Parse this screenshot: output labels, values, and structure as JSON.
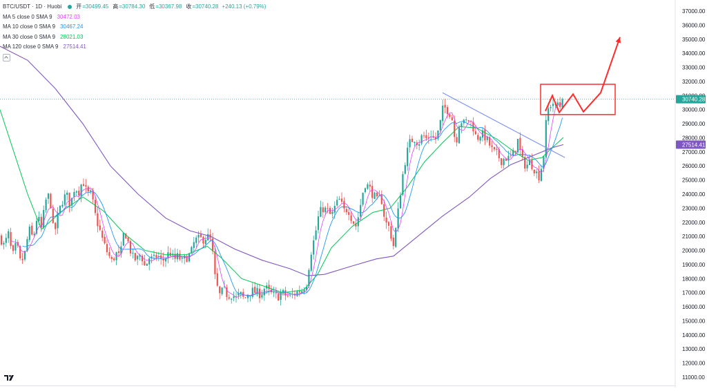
{
  "legend": {
    "symbol": "BTC/USDT · 1D · Huobi",
    "ohlc": [
      {
        "label": "开",
        "value": "=30499.45"
      },
      {
        "label": "高",
        "value": "=30784.30"
      },
      {
        "label": "低",
        "value": "=30367.98"
      },
      {
        "label": "收",
        "value": "=30740.28"
      }
    ],
    "change": "+240.13 (+0.79%)",
    "ma": [
      {
        "label": "MA 5 close 0 SMA 9",
        "value": "30472.03",
        "color": "#e040fb"
      },
      {
        "label": "MA 10 close 0 SMA 9",
        "value": "30467.24",
        "color": "#2196f3"
      },
      {
        "label": "MA 30 close 0 SMA 9",
        "value": "28021.03",
        "color": "#00c853"
      },
      {
        "label": "MA 120 close 0 SMA 9",
        "value": "27514.41",
        "color": "#7e57c2"
      }
    ]
  },
  "price_tags": [
    {
      "value": 30740.28,
      "text": "30740.28",
      "color": "#26a69a"
    },
    {
      "value": 27514.41,
      "text": "27514.41",
      "color": "#7e57c2"
    }
  ],
  "colors": {
    "up": "#26a69a",
    "down": "#ef5350",
    "annotation": "#ff2b2b",
    "trendline": "#7b8ff0"
  },
  "chart_data": {
    "type": "candlestick",
    "symbol": "BTC/USDT",
    "interval": "1D",
    "exchange": "Huobi",
    "ylim": [
      10800,
      37600
    ],
    "y_ticks": [
      11000,
      12000,
      13000,
      14000,
      15000,
      16000,
      17000,
      18000,
      19000,
      20000,
      21000,
      22000,
      23000,
      24000,
      25000,
      26000,
      27000,
      28000,
      29000,
      30000,
      31000,
      32000,
      33000,
      34000,
      35000,
      36000,
      37000
    ],
    "y_tick_labels": [
      "11000.00",
      "12000.00",
      "13000.00",
      "14000.00",
      "15000.00",
      "16000.00",
      "17000.00",
      "18000.00",
      "19000.00",
      "20000.00",
      "21000.00",
      "22000.00",
      "23000.00",
      "24000.00",
      "25000.00",
      "26000.00",
      "27000.00",
      "28000.00",
      "29000.00",
      "30000.00",
      "31000.00",
      "32000.00",
      "33000.00",
      "34000.00",
      "35000.00",
      "36000.00",
      "37000.00"
    ],
    "last_close": 30740.28,
    "close_path": [
      [
        0,
        21000
      ],
      [
        6,
        20300
      ],
      [
        12,
        21200
      ],
      [
        18,
        19500
      ],
      [
        24,
        20500
      ],
      [
        30,
        19000
      ],
      [
        36,
        19800
      ],
      [
        42,
        21500
      ],
      [
        48,
        20800
      ],
      [
        54,
        22500
      ],
      [
        60,
        21500
      ],
      [
        66,
        23500
      ],
      [
        72,
        24000
      ],
      [
        78,
        21000
      ],
      [
        84,
        22500
      ],
      [
        90,
        23500
      ],
      [
        96,
        24000
      ],
      [
        102,
        23200
      ],
      [
        108,
        24500
      ],
      [
        114,
        24200
      ],
      [
        120,
        25000
      ],
      [
        126,
        24000
      ],
      [
        132,
        24000
      ],
      [
        138,
        22500
      ],
      [
        144,
        21500
      ],
      [
        150,
        20500
      ],
      [
        156,
        19800
      ],
      [
        162,
        19200
      ],
      [
        168,
        19800
      ],
      [
        174,
        19500
      ],
      [
        180,
        21500
      ],
      [
        186,
        20500
      ],
      [
        192,
        19500
      ],
      [
        198,
        19300
      ],
      [
        204,
        19800
      ],
      [
        210,
        18800
      ],
      [
        216,
        19500
      ],
      [
        222,
        19300
      ],
      [
        228,
        19700
      ],
      [
        234,
        19200
      ],
      [
        240,
        19500
      ],
      [
        246,
        19900
      ],
      [
        252,
        19300
      ],
      [
        258,
        19600
      ],
      [
        264,
        19200
      ],
      [
        270,
        19500
      ],
      [
        276,
        19700
      ],
      [
        282,
        20700
      ],
      [
        288,
        20800
      ],
      [
        294,
        20800
      ],
      [
        300,
        21000
      ],
      [
        306,
        20700
      ],
      [
        312,
        17800
      ],
      [
        318,
        16800
      ],
      [
        324,
        17200
      ],
      [
        330,
        16800
      ],
      [
        336,
        16900
      ],
      [
        342,
        16600
      ],
      [
        348,
        16900
      ],
      [
        354,
        16500
      ],
      [
        360,
        17000
      ],
      [
        366,
        17100
      ],
      [
        372,
        17000
      ],
      [
        378,
        16900
      ],
      [
        384,
        17400
      ],
      [
        390,
        17000
      ],
      [
        396,
        16800
      ],
      [
        402,
        16700
      ],
      [
        408,
        17000
      ],
      [
        414,
        16800
      ],
      [
        420,
        16700
      ],
      [
        426,
        16900
      ],
      [
        432,
        17100
      ],
      [
        438,
        17200
      ],
      [
        444,
        17700
      ],
      [
        450,
        19800
      ],
      [
        456,
        21000
      ],
      [
        462,
        22600
      ],
      [
        468,
        23000
      ],
      [
        474,
        22800
      ],
      [
        480,
        22400
      ],
      [
        486,
        23200
      ],
      [
        492,
        23600
      ],
      [
        498,
        22800
      ],
      [
        504,
        23000
      ],
      [
        510,
        22200
      ],
      [
        516,
        21700
      ],
      [
        522,
        23200
      ],
      [
        528,
        24800
      ],
      [
        534,
        24500
      ],
      [
        540,
        24000
      ],
      [
        546,
        23500
      ],
      [
        552,
        23800
      ],
      [
        558,
        22000
      ],
      [
        564,
        21600
      ],
      [
        570,
        20300
      ],
      [
        576,
        22500
      ],
      [
        582,
        25000
      ],
      [
        588,
        26700
      ],
      [
        594,
        27700
      ],
      [
        600,
        28000
      ],
      [
        606,
        27600
      ],
      [
        612,
        28200
      ],
      [
        618,
        27900
      ],
      [
        624,
        28300
      ],
      [
        630,
        27800
      ],
      [
        636,
        28600
      ],
      [
        642,
        30200
      ],
      [
        648,
        30000
      ],
      [
        654,
        29600
      ],
      [
        660,
        27500
      ],
      [
        666,
        29300
      ],
      [
        672,
        29000
      ],
      [
        678,
        29300
      ],
      [
        684,
        29000
      ],
      [
        690,
        27900
      ],
      [
        696,
        28300
      ],
      [
        702,
        28100
      ],
      [
        708,
        27600
      ],
      [
        714,
        27000
      ],
      [
        720,
        26800
      ],
      [
        726,
        26400
      ],
      [
        732,
        26600
      ],
      [
        738,
        26500
      ],
      [
        744,
        26900
      ],
      [
        750,
        27800
      ],
      [
        756,
        26400
      ],
      [
        762,
        26000
      ],
      [
        768,
        26300
      ],
      [
        774,
        25800
      ],
      [
        780,
        25200
      ],
      [
        784,
        25900
      ],
      [
        788,
        27000
      ],
      [
        792,
        29800
      ],
      [
        796,
        30200
      ],
      [
        800,
        30600
      ],
      [
        804,
        30100
      ],
      [
        808,
        30500
      ],
      [
        812,
        30200
      ],
      [
        816,
        30740
      ]
    ],
    "moving_averages": [
      {
        "name": "MA 5 close 0 SMA 9",
        "period": 5,
        "value": 30472.03,
        "color": "#e040fb"
      },
      {
        "name": "MA 10 close 0 SMA 9",
        "period": 10,
        "value": 30467.24,
        "color": "#2196f3"
      },
      {
        "name": "MA 30 close 0 SMA 9",
        "period": 30,
        "value": 28021.03,
        "color": "#00c853"
      },
      {
        "name": "MA 120 close 0 SMA 9",
        "period": 120,
        "value": 27514.41,
        "color": "#7e57c2"
      }
    ],
    "ma120_path": [
      [
        0,
        34500
      ],
      [
        40,
        33500
      ],
      [
        80,
        31500
      ],
      [
        120,
        29000
      ],
      [
        160,
        26000
      ],
      [
        200,
        24000
      ],
      [
        240,
        22300
      ],
      [
        275,
        21400
      ],
      [
        305,
        21000
      ],
      [
        340,
        20100
      ],
      [
        380,
        19300
      ],
      [
        420,
        18700
      ],
      [
        445,
        18200
      ],
      [
        470,
        18300
      ],
      [
        510,
        18900
      ],
      [
        545,
        19400
      ],
      [
        570,
        19600
      ],
      [
        600,
        20800
      ],
      [
        640,
        22400
      ],
      [
        680,
        23800
      ],
      [
        710,
        25100
      ],
      [
        740,
        26100
      ],
      [
        770,
        26700
      ],
      [
        800,
        27300
      ],
      [
        816,
        27514
      ]
    ],
    "ma30_path": [
      [
        0,
        30000
      ],
      [
        20,
        27000
      ],
      [
        40,
        24000
      ],
      [
        60,
        21500
      ],
      [
        90,
        22800
      ],
      [
        120,
        23800
      ],
      [
        150,
        22800
      ],
      [
        180,
        21200
      ],
      [
        210,
        20000
      ],
      [
        240,
        19700
      ],
      [
        270,
        19700
      ],
      [
        300,
        20300
      ],
      [
        320,
        19500
      ],
      [
        350,
        18000
      ],
      [
        380,
        17500
      ],
      [
        410,
        17000
      ],
      [
        440,
        17200
      ],
      [
        460,
        18300
      ],
      [
        480,
        20200
      ],
      [
        510,
        21700
      ],
      [
        540,
        22700
      ],
      [
        565,
        23000
      ],
      [
        590,
        24500
      ],
      [
        615,
        26300
      ],
      [
        640,
        27600
      ],
      [
        665,
        28800
      ],
      [
        690,
        28700
      ],
      [
        720,
        27900
      ],
      [
        745,
        27000
      ],
      [
        765,
        26400
      ],
      [
        785,
        26600
      ],
      [
        800,
        27300
      ],
      [
        816,
        28021
      ]
    ],
    "trendline": [
      [
        641,
        31200
      ],
      [
        818,
        26600
      ]
    ],
    "annotations": {
      "box": {
        "x0": 783,
        "x1": 891,
        "y_top": 31800,
        "y_bottom": 29650
      },
      "zigzag": [
        [
          790,
          29900
        ],
        [
          800,
          31000
        ],
        [
          810,
          29800
        ],
        [
          830,
          31100
        ],
        [
          845,
          29850
        ],
        [
          870,
          31200
        ],
        [
          898,
          35150
        ]
      ]
    }
  }
}
